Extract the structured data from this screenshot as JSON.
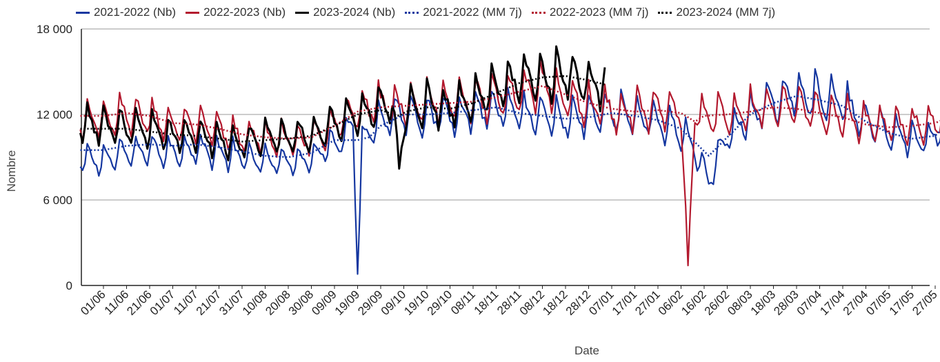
{
  "chart_data": {
    "type": "line",
    "xlabel": "Date",
    "ylabel": "Nombre",
    "ylim": [
      0,
      18000
    ],
    "yticks": [
      {
        "value": 0,
        "label": "0"
      },
      {
        "value": 6000,
        "label": "6 000"
      },
      {
        "value": 12000,
        "label": "12 000"
      },
      {
        "value": 18000,
        "label": "18 000"
      }
    ],
    "grid": true,
    "legend_position": "top",
    "x_categories": [
      "01/06",
      "11/06",
      "21/06",
      "01/07",
      "11/07",
      "21/07",
      "31/07",
      "10/08",
      "20/08",
      "30/08",
      "09/09",
      "19/09",
      "29/09",
      "09/10",
      "19/10",
      "29/10",
      "08/11",
      "18/11",
      "28/11",
      "08/12",
      "18/12",
      "28/12",
      "07/01",
      "17/01",
      "27/01",
      "06/02",
      "16/02",
      "26/02",
      "08/03",
      "18/03",
      "28/03",
      "07/04",
      "17/04",
      "27/04",
      "07/05",
      "17/05",
      "27/05"
    ],
    "x_note_days_between_labels": 10,
    "series": [
      {
        "name": "2021-2022 (Nb)",
        "color": "#1537a0",
        "style": "solid",
        "anchors": [
          [
            0,
            8800
          ],
          [
            10,
            9300
          ],
          [
            20,
            9500
          ],
          [
            30,
            9400
          ],
          [
            40,
            9600
          ],
          [
            50,
            9300
          ],
          [
            60,
            9000
          ],
          [
            70,
            8700
          ],
          [
            80,
            8600
          ],
          [
            90,
            9000
          ],
          [
            100,
            10000
          ],
          [
            108,
            11200
          ],
          [
            110,
            800
          ],
          [
            112,
            10200
          ],
          [
            118,
            11400
          ],
          [
            130,
            12200
          ],
          [
            140,
            11800
          ],
          [
            150,
            12000
          ],
          [
            160,
            12200
          ],
          [
            170,
            12400
          ],
          [
            180,
            12000
          ],
          [
            190,
            11800
          ],
          [
            200,
            11600
          ],
          [
            210,
            11800
          ],
          [
            220,
            12200
          ],
          [
            230,
            11900
          ],
          [
            240,
            11500
          ],
          [
            250,
            10800
          ],
          [
            255,
            9800
          ],
          [
            262,
            7400
          ],
          [
            270,
            10500
          ],
          [
            280,
            12000
          ],
          [
            290,
            12800
          ],
          [
            300,
            13500
          ],
          [
            310,
            13200
          ],
          [
            320,
            12800
          ],
          [
            330,
            11500
          ],
          [
            340,
            10800
          ],
          [
            350,
            10200
          ],
          [
            360,
            10500
          ],
          [
            366,
            12000
          ]
        ]
      },
      {
        "name": "2022-2023 (Nb)",
        "color": "#b3192e",
        "style": "solid",
        "anchors": [
          [
            0,
            11500
          ],
          [
            10,
            12000
          ],
          [
            20,
            11800
          ],
          [
            30,
            11200
          ],
          [
            40,
            11200
          ],
          [
            50,
            10800
          ],
          [
            60,
            10400
          ],
          [
            70,
            10300
          ],
          [
            80,
            10200
          ],
          [
            90,
            10300
          ],
          [
            100,
            11300
          ],
          [
            110,
            12300
          ],
          [
            120,
            12600
          ],
          [
            130,
            12700
          ],
          [
            140,
            12800
          ],
          [
            150,
            13000
          ],
          [
            160,
            13000
          ],
          [
            170,
            13200
          ],
          [
            180,
            13600
          ],
          [
            190,
            14000
          ],
          [
            200,
            13200
          ],
          [
            210,
            12600
          ],
          [
            220,
            12300
          ],
          [
            230,
            12200
          ],
          [
            240,
            12400
          ],
          [
            250,
            12500
          ],
          [
            253,
            1400
          ],
          [
            256,
            12400
          ],
          [
            260,
            12000
          ],
          [
            270,
            12000
          ],
          [
            280,
            12300
          ],
          [
            290,
            12600
          ],
          [
            300,
            12500
          ],
          [
            310,
            12200
          ],
          [
            320,
            11800
          ],
          [
            330,
            11400
          ],
          [
            340,
            11200
          ],
          [
            350,
            11300
          ],
          [
            360,
            11500
          ],
          [
            366,
            12500
          ]
        ]
      },
      {
        "name": "2023-2024 (Nb)",
        "color": "#000000",
        "style": "solid",
        "anchors": [
          [
            0,
            11200
          ],
          [
            10,
            11100
          ],
          [
            20,
            10800
          ],
          [
            30,
            10600
          ],
          [
            40,
            10500
          ],
          [
            50,
            10200
          ],
          [
            60,
            10000
          ],
          [
            70,
            10300
          ],
          [
            80,
            10400
          ],
          [
            90,
            10600
          ],
          [
            100,
            11300
          ],
          [
            110,
            12100
          ],
          [
            120,
            12500
          ],
          [
            125,
            12600
          ],
          [
            128,
            8200
          ],
          [
            131,
            12400
          ],
          [
            140,
            12700
          ],
          [
            150,
            12500
          ],
          [
            160,
            13000
          ],
          [
            170,
            13800
          ],
          [
            180,
            14500
          ],
          [
            190,
            14600
          ],
          [
            200,
            14800
          ],
          [
            210,
            14300
          ],
          [
            217,
            14000
          ]
        ]
      },
      {
        "name": "2021-2022 (MM 7j)",
        "color": "#1537a0",
        "style": "dotted",
        "anchors": [
          [
            0,
            9500
          ],
          [
            10,
            9800
          ],
          [
            20,
            9900
          ],
          [
            30,
            9800
          ],
          [
            40,
            9900
          ],
          [
            50,
            9700
          ],
          [
            60,
            9400
          ],
          [
            70,
            9100
          ],
          [
            80,
            9000
          ],
          [
            90,
            9300
          ],
          [
            100,
            10200
          ],
          [
            110,
            10200
          ],
          [
            115,
            10400
          ],
          [
            120,
            11200
          ],
          [
            130,
            12000
          ],
          [
            140,
            12000
          ],
          [
            150,
            12100
          ],
          [
            160,
            12300
          ],
          [
            170,
            12500
          ],
          [
            180,
            12100
          ],
          [
            190,
            11900
          ],
          [
            200,
            11700
          ],
          [
            210,
            11800
          ],
          [
            220,
            12100
          ],
          [
            230,
            11900
          ],
          [
            240,
            11600
          ],
          [
            250,
            11000
          ],
          [
            262,
            9100
          ],
          [
            270,
            10400
          ],
          [
            280,
            12000
          ],
          [
            290,
            12800
          ],
          [
            300,
            13300
          ],
          [
            310,
            13000
          ],
          [
            320,
            12600
          ],
          [
            330,
            11500
          ],
          [
            340,
            10700
          ],
          [
            350,
            10300
          ],
          [
            360,
            10500
          ],
          [
            366,
            11500
          ]
        ]
      },
      {
        "name": "2022-2023 (MM 7j)",
        "color": "#b3192e",
        "style": "dotted",
        "anchors": [
          [
            0,
            11900
          ],
          [
            10,
            12100
          ],
          [
            20,
            11900
          ],
          [
            30,
            11400
          ],
          [
            40,
            11300
          ],
          [
            50,
            11000
          ],
          [
            60,
            10600
          ],
          [
            70,
            10400
          ],
          [
            80,
            10300
          ],
          [
            90,
            10400
          ],
          [
            100,
            11200
          ],
          [
            110,
            12200
          ],
          [
            120,
            12500
          ],
          [
            130,
            12600
          ],
          [
            140,
            12700
          ],
          [
            150,
            12800
          ],
          [
            160,
            12900
          ],
          [
            170,
            13200
          ],
          [
            180,
            13600
          ],
          [
            190,
            14000
          ],
          [
            200,
            13400
          ],
          [
            210,
            12800
          ],
          [
            220,
            12400
          ],
          [
            230,
            12200
          ],
          [
            240,
            12300
          ],
          [
            250,
            12100
          ],
          [
            256,
            11500
          ],
          [
            260,
            11900
          ],
          [
            270,
            12000
          ],
          [
            280,
            12200
          ],
          [
            290,
            12500
          ],
          [
            300,
            12400
          ],
          [
            310,
            12100
          ],
          [
            320,
            11800
          ],
          [
            330,
            11300
          ],
          [
            340,
            11100
          ],
          [
            350,
            11200
          ],
          [
            360,
            11400
          ],
          [
            366,
            11800
          ]
        ]
      },
      {
        "name": "2023-2024 (MM 7j)",
        "color": "#000000",
        "style": "dotted",
        "anchors": [
          [
            0,
            11000
          ],
          [
            10,
            11000
          ],
          [
            20,
            10800
          ],
          [
            30,
            10600
          ],
          [
            40,
            10500
          ],
          [
            50,
            10300
          ],
          [
            60,
            10100
          ],
          [
            70,
            10200
          ],
          [
            80,
            10300
          ],
          [
            90,
            10500
          ],
          [
            100,
            11200
          ],
          [
            110,
            12000
          ],
          [
            120,
            12300
          ],
          [
            128,
            11900
          ],
          [
            131,
            12200
          ],
          [
            140,
            12500
          ],
          [
            150,
            12400
          ],
          [
            160,
            12800
          ],
          [
            170,
            13500
          ],
          [
            180,
            14200
          ],
          [
            190,
            14600
          ],
          [
            200,
            14700
          ],
          [
            210,
            14400
          ],
          [
            217,
            14100
          ]
        ]
      }
    ]
  }
}
